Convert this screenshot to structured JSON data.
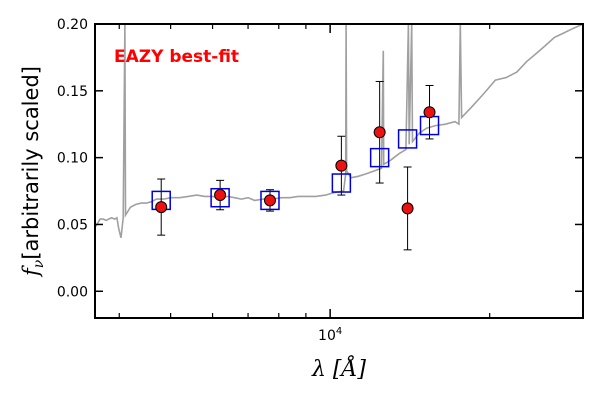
{
  "chart_data": {
    "type": "scatter",
    "annotation": "EAZY best-fit",
    "xlabel": "λ [Å]",
    "ylabel": "f_ν [arbitrarily scaled]",
    "ylabel_parts": {
      "symbol": "f",
      "subscript": "ν",
      "rest": "[arbitrarily scaled]"
    },
    "x_scale": "log",
    "xlim": [
      3600,
      30000
    ],
    "ylim": [
      -0.02,
      0.2
    ],
    "y_ticks": [
      0.0,
      0.05,
      0.1,
      0.15,
      0.2
    ],
    "y_tick_labels": [
      "0.00",
      "0.05",
      "0.10",
      "0.15",
      "0.20"
    ],
    "x_major_tick": {
      "value": 10000,
      "label_base": "10",
      "label_exp": "4"
    },
    "x_minor_ticks": [
      4000,
      5000,
      6000,
      7000,
      8000,
      9000,
      20000,
      30000
    ],
    "grid": false,
    "colors": {
      "template": "#a0a0a0",
      "model": "#0000dd",
      "observed_fill": "#ee1111",
      "annotation": "#ff0000"
    },
    "model_photometry": [
      {
        "x": 4800,
        "y": 0.068
      },
      {
        "x": 6200,
        "y": 0.07
      },
      {
        "x": 7700,
        "y": 0.068
      },
      {
        "x": 10500,
        "y": 0.081
      },
      {
        "x": 12400,
        "y": 0.1
      },
      {
        "x": 14000,
        "y": 0.114
      },
      {
        "x": 15400,
        "y": 0.124
      }
    ],
    "observed_photometry": [
      {
        "x": 4800,
        "y": 0.063,
        "err": 0.021
      },
      {
        "x": 6200,
        "y": 0.072,
        "err": 0.011
      },
      {
        "x": 7700,
        "y": 0.068,
        "err": 0.008
      },
      {
        "x": 10500,
        "y": 0.094,
        "err": 0.022
      },
      {
        "x": 12400,
        "y": 0.119,
        "err": 0.038
      },
      {
        "x": 14000,
        "y": 0.062,
        "err": 0.031
      },
      {
        "x": 15400,
        "y": 0.134,
        "err": 0.02
      }
    ],
    "template_spectrum": [
      [
        3600,
        0.048
      ],
      [
        3630,
        0.05
      ],
      [
        3680,
        0.054
      ],
      [
        3730,
        0.054
      ],
      [
        3780,
        0.053
      ],
      [
        3820,
        0.054
      ],
      [
        3870,
        0.055
      ],
      [
        3920,
        0.054
      ],
      [
        3960,
        0.055
      ],
      [
        3990,
        0.047
      ],
      [
        4030,
        0.04
      ],
      [
        4070,
        0.055
      ],
      [
        4100,
        0.213
      ],
      [
        4110,
        0.057
      ],
      [
        4200,
        0.063
      ],
      [
        4300,
        0.065
      ],
      [
        4400,
        0.066
      ],
      [
        4500,
        0.066
      ],
      [
        4600,
        0.067
      ],
      [
        4700,
        0.069
      ],
      [
        4850,
        0.069
      ],
      [
        5000,
        0.07
      ],
      [
        5200,
        0.07
      ],
      [
        5400,
        0.071
      ],
      [
        5600,
        0.072
      ],
      [
        5800,
        0.071
      ],
      [
        6000,
        0.071
      ],
      [
        6200,
        0.07
      ],
      [
        6400,
        0.071
      ],
      [
        6600,
        0.07
      ],
      [
        6800,
        0.069
      ],
      [
        7000,
        0.07
      ],
      [
        7200,
        0.068
      ],
      [
        7500,
        0.069
      ],
      [
        7800,
        0.069
      ],
      [
        8100,
        0.07
      ],
      [
        8400,
        0.07
      ],
      [
        8700,
        0.071
      ],
      [
        9000,
        0.071
      ],
      [
        9400,
        0.071
      ],
      [
        9800,
        0.072
      ],
      [
        10200,
        0.074
      ],
      [
        10600,
        0.075
      ],
      [
        10700,
        0.088
      ],
      [
        10720,
        0.22
      ],
      [
        10740,
        0.09
      ],
      [
        10950,
        0.085
      ],
      [
        11300,
        0.086
      ],
      [
        11700,
        0.088
      ],
      [
        12100,
        0.09
      ],
      [
        12500,
        0.092
      ],
      [
        12600,
        0.18
      ],
      [
        12620,
        0.095
      ],
      [
        13000,
        0.098
      ],
      [
        13500,
        0.103
      ],
      [
        13900,
        0.106
      ],
      [
        14050,
        0.22
      ],
      [
        14100,
        0.11
      ],
      [
        14250,
        0.22
      ],
      [
        14300,
        0.112
      ],
      [
        14700,
        0.118
      ],
      [
        15200,
        0.122
      ],
      [
        15800,
        0.124
      ],
      [
        16500,
        0.125
      ],
      [
        17200,
        0.127
      ],
      [
        17500,
        0.125
      ],
      [
        17600,
        0.22
      ],
      [
        17700,
        0.13
      ],
      [
        18500,
        0.138
      ],
      [
        19500,
        0.148
      ],
      [
        20500,
        0.158
      ],
      [
        21500,
        0.16
      ],
      [
        22500,
        0.164
      ],
      [
        23500,
        0.172
      ],
      [
        24500,
        0.178
      ],
      [
        25500,
        0.184
      ],
      [
        26500,
        0.19
      ],
      [
        27500,
        0.193
      ],
      [
        28500,
        0.196
      ],
      [
        30000,
        0.2
      ]
    ]
  }
}
